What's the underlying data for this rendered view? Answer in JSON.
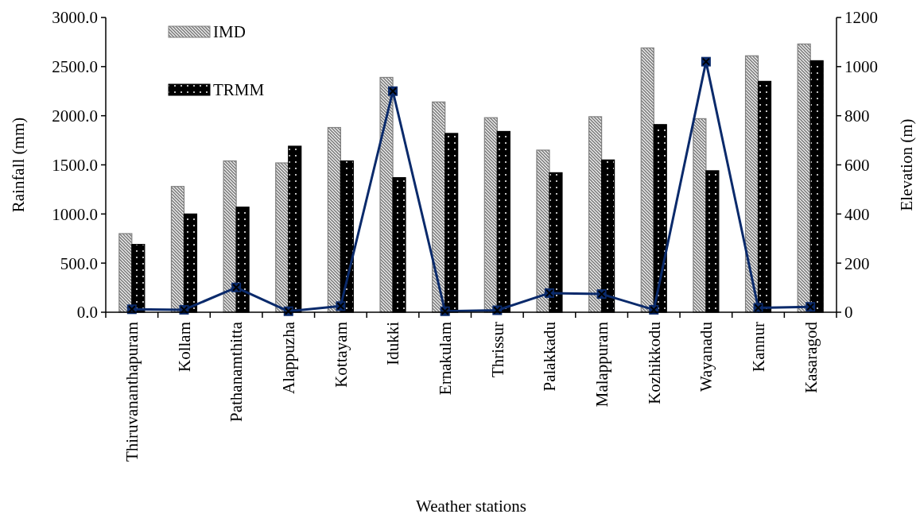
{
  "chart_data": {
    "type": "bar",
    "xlabel": "Weather stations",
    "ylabel": "Rainfall (mm)",
    "y2label": "Elevation (m)",
    "categories": [
      "Thiruvananthapuram",
      "Kollam",
      "Pathanamthitta",
      "Alappuzha",
      "Kottayam",
      "Idukki",
      "Ernakulam",
      "Thrissur",
      "Palakkadu",
      "Malappuram",
      "Kozhikkodu",
      "Wayanadu",
      "Kannur",
      "Kasaragod"
    ],
    "series": [
      {
        "name": "IMD",
        "color": "#7f7f7f",
        "values": [
          800,
          1280,
          1540,
          1520,
          1880,
          2390,
          2140,
          1980,
          1650,
          1990,
          2690,
          1970,
          2610,
          2730
        ]
      },
      {
        "name": "TRMM",
        "color": "#000000",
        "values": [
          690,
          1000,
          1070,
          1690,
          1540,
          1370,
          1820,
          1840,
          1420,
          1550,
          1910,
          1440,
          2350,
          2560
        ]
      },
      {
        "type": "line",
        "axis": "y2",
        "color": "#0a2a6b",
        "values": [
          12,
          10,
          101,
          4,
          25,
          900,
          4,
          8,
          78,
          74,
          10,
          1020,
          18,
          22
        ]
      }
    ],
    "ylim": [
      0,
      3000
    ],
    "yticks": [
      {
        "value": 0,
        "label": "0.0"
      },
      {
        "value": 500,
        "label": "500.0"
      },
      {
        "value": 1000,
        "label": "1000.0"
      },
      {
        "value": 1500,
        "label": "1500.0"
      },
      {
        "value": 2000,
        "label": "2000.0"
      },
      {
        "value": 2500,
        "label": "2500.0"
      },
      {
        "value": 3000,
        "label": "3000.0"
      }
    ],
    "y2lim": [
      0,
      1200
    ],
    "y2ticks": [
      0,
      200,
      400,
      600,
      800,
      1000,
      1200
    ],
    "marker": "square",
    "legend": "top left",
    "grid": false
  }
}
